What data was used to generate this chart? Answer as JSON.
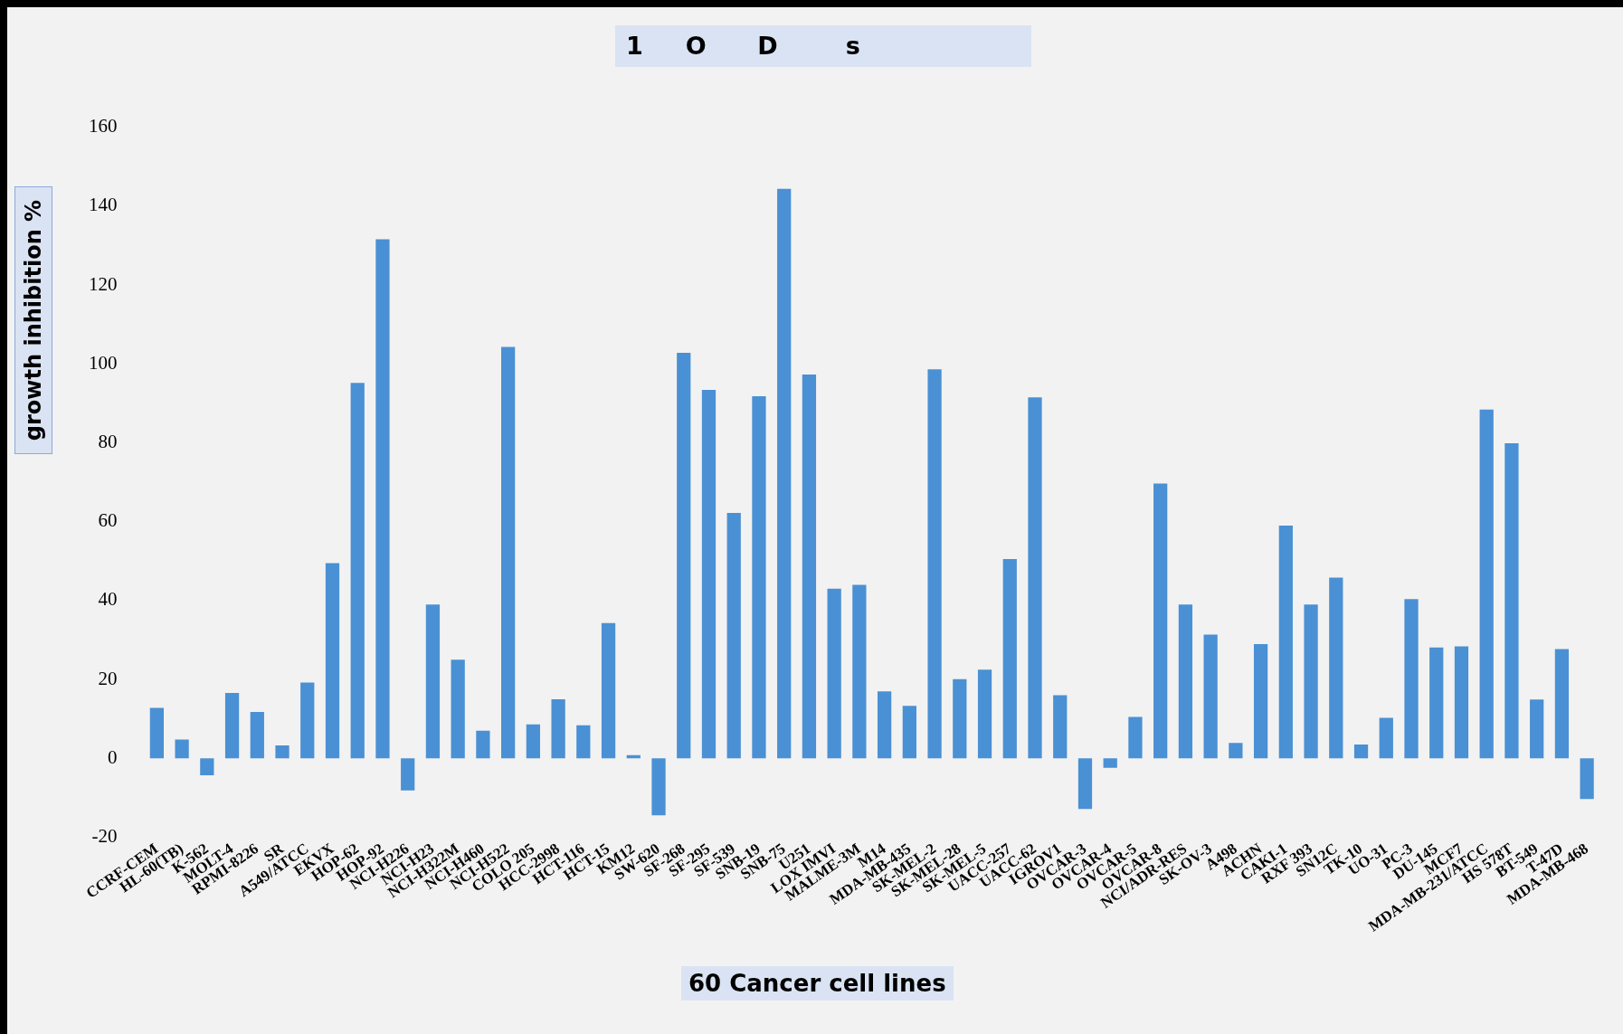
{
  "chart_data": {
    "type": "bar",
    "title": "1     O      D        s",
    "xlabel": "60 Cancer cell lines",
    "ylabel": "growth inhibition %",
    "categories": [
      "CCRF-CEM",
      "HL-60(TB)",
      "K-562",
      "MOLT-4",
      "RPMI-8226",
      "SR",
      "A549/ATCC",
      "EKVX",
      "HOP-62",
      "HOP-92",
      "NCI-H226",
      "NCI-H23",
      "NCI-H322M",
      "NCI-H460",
      "NCI-H522",
      "COLO 205",
      "HCC-2998",
      "HCT-116",
      "HCT-15",
      "KM12",
      "SW-620",
      "SF-268",
      "SF-295",
      "SF-539",
      "SNB-19",
      "SNB-75",
      "U251",
      "LOX IMVI",
      "MALME-3M",
      "M14",
      "MDA-MB-435",
      "SK-MEL-2",
      "SK-MEL-28",
      "SK-MEL-5",
      "UACC-257",
      "UACC-62",
      "IGROV1",
      "OVCAR-3",
      "OVCAR-4",
      "OVCAR-5",
      "OVCAR-8",
      "NCI/ADR-RES",
      "SK-OV-3",
      "A498",
      "ACHN",
      "CAKI-1",
      "RXF 393",
      "SN12C",
      "TK-10",
      "UO-31",
      "PC-3",
      "DU-145",
      "MCF7",
      "MDA-MB-231/ATCC",
      "HS 578T",
      "BT-549",
      "T-47D",
      "MDA-MB-468"
    ],
    "values": [
      12.8,
      4.8,
      -4.3,
      16.6,
      11.8,
      3.3,
      19.2,
      49.5,
      95.2,
      131.6,
      -8.1,
      39,
      25,
      7,
      104.3,
      8.6,
      15,
      8.4,
      34.3,
      0.8,
      -14.4,
      102.8,
      93.4,
      62.2,
      91.8,
      144.4,
      97.3,
      43,
      44,
      17,
      13.3,
      98.6,
      20.1,
      22.5,
      50.5,
      91.5,
      16,
      -12.8,
      -2.4,
      10.5,
      69.7,
      39,
      31.4,
      3.9,
      29,
      59,
      39,
      45.8,
      3.5,
      10.3,
      40.4,
      28.1,
      28.4,
      88.4,
      79.9,
      14.9,
      27.7,
      -10.3
    ],
    "color": "#4a90d4",
    "ylim": [
      -20,
      160
    ],
    "yticks": [
      -20,
      0,
      20,
      40,
      60,
      80,
      100,
      120,
      140,
      160
    ],
    "grid": false,
    "legend": false
  }
}
